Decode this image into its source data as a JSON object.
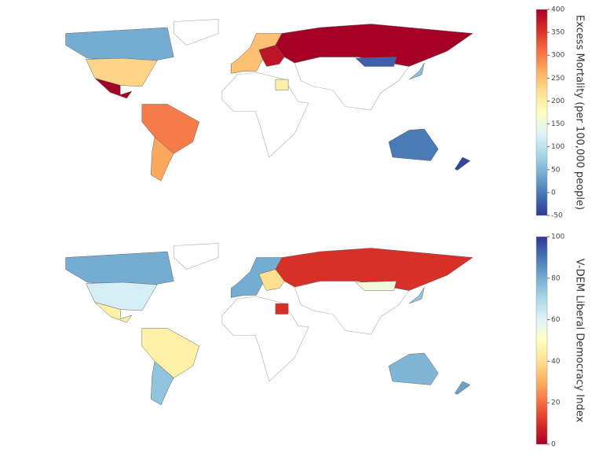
{
  "maps": [
    {
      "colorbar": {
        "label": "Excess Mortality (per 100,000 people)",
        "range": [
          -50,
          400
        ],
        "ticks": [
          -50,
          0,
          50,
          100,
          150,
          200,
          250,
          300,
          350,
          400
        ]
      },
      "colorscale": [
        "#313695",
        "#4575b4",
        "#74add1",
        "#abd9e9",
        "#e0f3f8",
        "#ffffbf",
        "#fee090",
        "#fdae61",
        "#f46d43",
        "#d73027",
        "#a50026"
      ],
      "values": [
        40,
        230,
        400,
        300,
        270,
        250,
        380,
        400,
        -20,
        60,
        200,
        0,
        -40
      ]
    },
    {
      "colorbar": {
        "label": "V-DEM Liberal Democracy Index",
        "range": [
          0,
          100
        ],
        "ticks": [
          0,
          20,
          40,
          60,
          80,
          100
        ]
      },
      "colorscale": [
        "#a50026",
        "#d73027",
        "#f46d43",
        "#fdae61",
        "#fee090",
        "#ffffbf",
        "#e0f3f8",
        "#abd9e9",
        "#74add1",
        "#4575b4",
        "#313695"
      ],
      "values": [
        80,
        62,
        45,
        45,
        75,
        80,
        40,
        10,
        55,
        75,
        10,
        78,
        82
      ]
    }
  ]
}
